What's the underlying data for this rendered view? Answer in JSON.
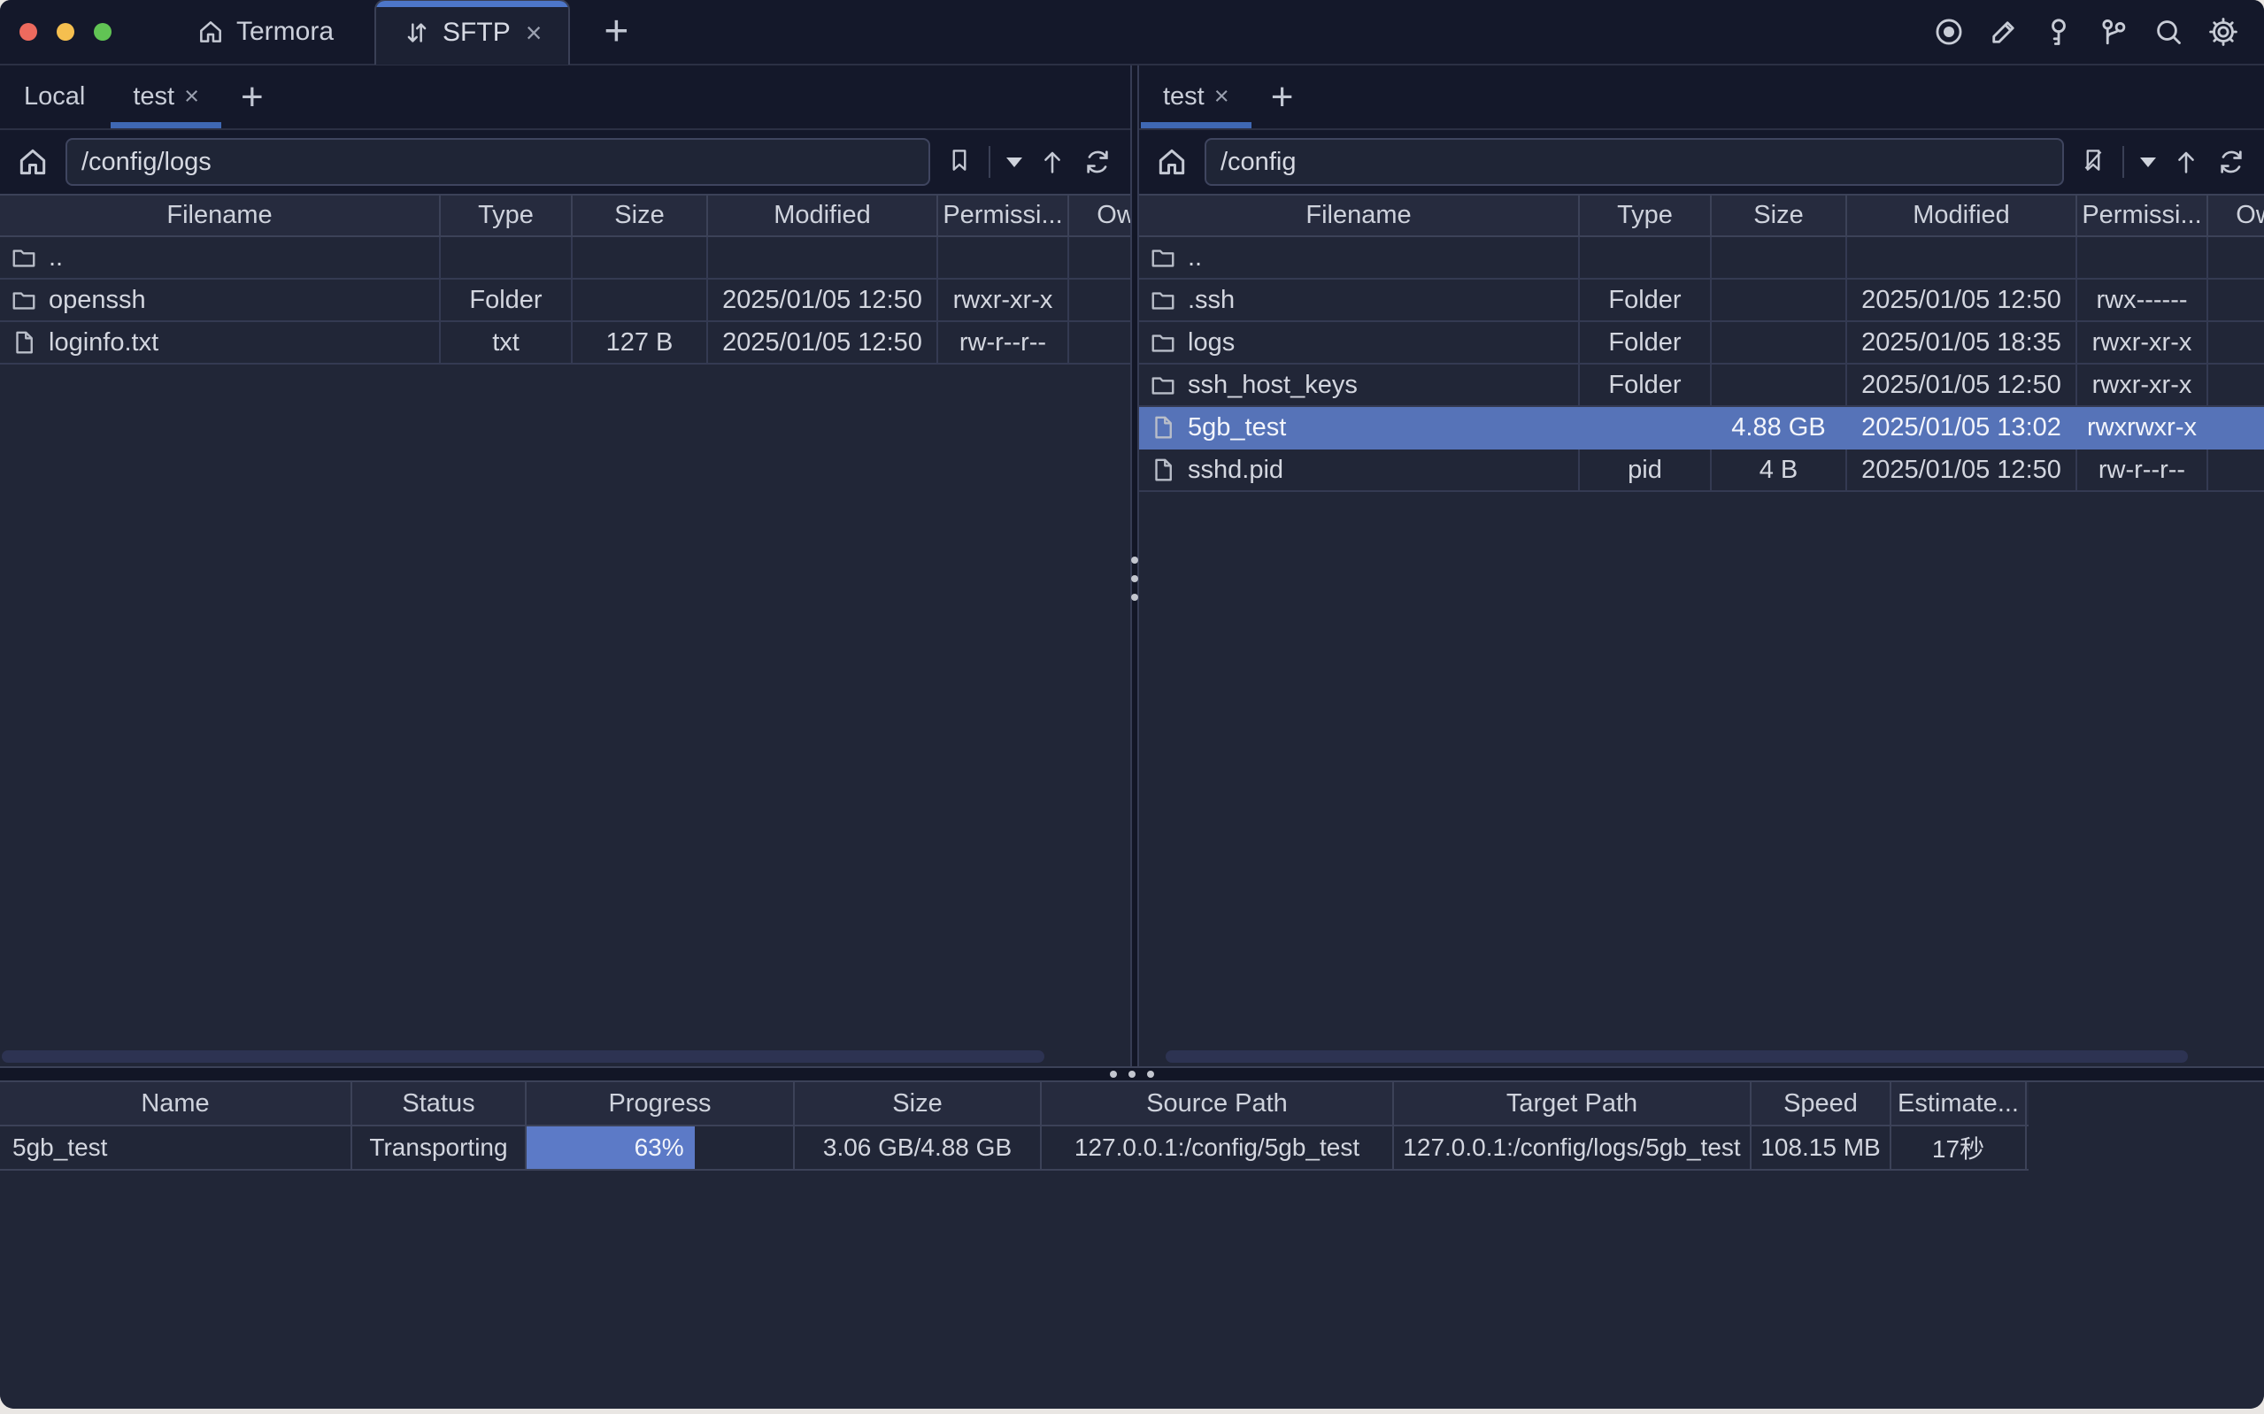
{
  "titlebar": {
    "app_tab_label": "Termora",
    "active_tab_label": "SFTP",
    "close_symbol": "×",
    "new_tab_symbol": "+",
    "action_icons": [
      "record-icon",
      "edit-icon",
      "key-icon",
      "keychain-icon",
      "search-icon",
      "settings-icon"
    ]
  },
  "left_pane": {
    "tabs": [
      {
        "label": "Local"
      },
      {
        "label": "test",
        "close": "×"
      }
    ],
    "new_tab_symbol": "+",
    "path": "/config/logs",
    "headers": [
      "Filename",
      "Type",
      "Size",
      "Modified",
      "Permissi...",
      "Owner"
    ],
    "rows": [
      {
        "name": "..",
        "icon": "folder",
        "type": "",
        "size": "",
        "modified": "",
        "permissions": ""
      },
      {
        "name": "openssh",
        "icon": "folder",
        "type": "Folder",
        "size": "",
        "modified": "2025/01/05 12:50",
        "permissions": "rwxr-xr-x"
      },
      {
        "name": "loginfo.txt",
        "icon": "file",
        "type": "txt",
        "size": "127 B",
        "modified": "2025/01/05 12:50",
        "permissions": "rw-r--r--"
      }
    ]
  },
  "right_pane": {
    "tabs": [
      {
        "label": "test",
        "close": "×"
      }
    ],
    "new_tab_symbol": "+",
    "path": "/config",
    "headers": [
      "Filename",
      "Type",
      "Size",
      "Modified",
      "Permissi...",
      "Owner"
    ],
    "rows": [
      {
        "name": "..",
        "icon": "folder",
        "type": "",
        "size": "",
        "modified": "",
        "permissions": ""
      },
      {
        "name": ".ssh",
        "icon": "folder",
        "type": "Folder",
        "size": "",
        "modified": "2025/01/05 12:50",
        "permissions": "rwx------"
      },
      {
        "name": "logs",
        "icon": "folder",
        "type": "Folder",
        "size": "",
        "modified": "2025/01/05 18:35",
        "permissions": "rwxr-xr-x"
      },
      {
        "name": "ssh_host_keys",
        "icon": "folder",
        "type": "Folder",
        "size": "",
        "modified": "2025/01/05 12:50",
        "permissions": "rwxr-xr-x"
      },
      {
        "name": "5gb_test",
        "icon": "file",
        "type": "",
        "size": "4.88 GB",
        "modified": "2025/01/05 13:02",
        "permissions": "rwxrwxr-x",
        "selected": true
      },
      {
        "name": "sshd.pid",
        "icon": "file",
        "type": "pid",
        "size": "4 B",
        "modified": "2025/01/05 12:50",
        "permissions": "rw-r--r--"
      }
    ]
  },
  "transfers": {
    "headers": [
      "Name",
      "Status",
      "Progress",
      "Size",
      "Source Path",
      "Target Path",
      "Speed",
      "Estimate..."
    ],
    "row": {
      "name": "5gb_test",
      "status": "Transporting",
      "progress_label": "63%",
      "progress_percent": 63,
      "size": "3.06 GB/4.88 GB",
      "source_path": "127.0.0.1:/config/5gb_test",
      "target_path": "127.0.0.1:/config/logs/5gb_test",
      "speed": "108.15 MB",
      "estimate": "17秒"
    }
  },
  "colors": {
    "accent_blue": "#4d76c9",
    "tab_underline_blue": "#3f68b4",
    "selection_blue": "#5673b8",
    "progress_blue": "#5c7ac7",
    "traffic_red": "#ed6a5e",
    "traffic_yellow": "#f5bf4f",
    "traffic_green": "#61c454"
  }
}
